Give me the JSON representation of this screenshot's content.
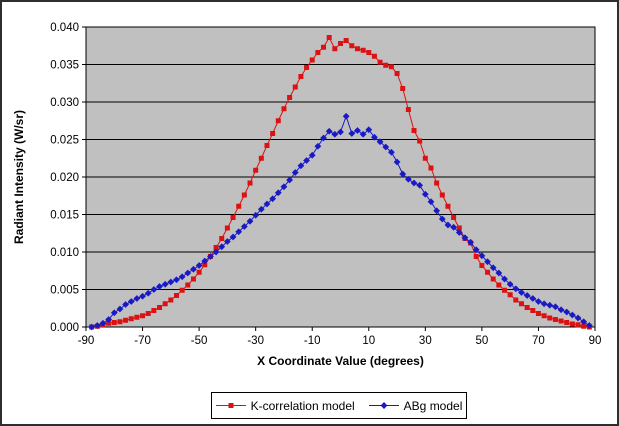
{
  "chart_data": {
    "type": "line",
    "title": "",
    "xlabel": "X Coordinate Value (degrees)",
    "ylabel": "Radiant Intensity (W/sr)",
    "xlim": [
      -90,
      90
    ],
    "ylim": [
      0,
      0.04
    ],
    "x_ticks": [
      "-90",
      "-70",
      "-50",
      "-30",
      "-10",
      "10",
      "30",
      "50",
      "70",
      "90"
    ],
    "y_ticks": [
      "0.000",
      "0.005",
      "0.010",
      "0.015",
      "0.020",
      "0.025",
      "0.030",
      "0.035",
      "0.040"
    ],
    "grid": "horizontal gridlines on, plot area gray",
    "plot_bg_color": "#c0c0c0",
    "gridline_color": "#000000",
    "legend_position": "bottom-center boxed",
    "x_start": -88,
    "x_step": 2,
    "series": [
      {
        "name": "K-correlation model",
        "color": "#dd1111",
        "marker": "square",
        "values": [
          0.0,
          0.0001,
          0.0003,
          0.0005,
          0.0006,
          0.0007,
          0.0009,
          0.0011,
          0.0013,
          0.0015,
          0.0018,
          0.0022,
          0.0026,
          0.0031,
          0.0036,
          0.0042,
          0.0049,
          0.0056,
          0.0064,
          0.0073,
          0.0083,
          0.0094,
          0.0106,
          0.0118,
          0.0132,
          0.0146,
          0.0161,
          0.0176,
          0.0192,
          0.0209,
          0.0225,
          0.0242,
          0.0258,
          0.0275,
          0.0291,
          0.0306,
          0.032,
          0.0334,
          0.0346,
          0.0356,
          0.0366,
          0.0373,
          0.0386,
          0.0371,
          0.0378,
          0.0382,
          0.0375,
          0.0371,
          0.0369,
          0.0366,
          0.0361,
          0.0353,
          0.0349,
          0.0347,
          0.0338,
          0.0318,
          0.029,
          0.0262,
          0.0248,
          0.0225,
          0.0212,
          0.0192,
          0.0176,
          0.0161,
          0.0146,
          0.0132,
          0.0118,
          0.0112,
          0.0094,
          0.0082,
          0.0073,
          0.0064,
          0.0056,
          0.0049,
          0.0043,
          0.0036,
          0.0031,
          0.0026,
          0.0022,
          0.0018,
          0.0015,
          0.0012,
          0.001,
          0.0008,
          0.0006,
          0.0004,
          0.0003,
          0.0001,
          0.0
        ]
      },
      {
        "name": "ABg model",
        "color": "#1a1ac4",
        "marker": "diamond",
        "values": [
          0.0,
          0.0002,
          0.0005,
          0.001,
          0.0019,
          0.0024,
          0.003,
          0.0034,
          0.0038,
          0.0041,
          0.0045,
          0.005,
          0.0054,
          0.0057,
          0.006,
          0.0063,
          0.0067,
          0.0072,
          0.0077,
          0.0082,
          0.0088,
          0.0094,
          0.01,
          0.0107,
          0.0114,
          0.012,
          0.0127,
          0.0134,
          0.0141,
          0.0149,
          0.0157,
          0.0164,
          0.0171,
          0.0179,
          0.0187,
          0.0196,
          0.0206,
          0.0215,
          0.0222,
          0.0229,
          0.0241,
          0.0252,
          0.0261,
          0.0257,
          0.026,
          0.0281,
          0.0258,
          0.0262,
          0.0257,
          0.0263,
          0.0253,
          0.0247,
          0.024,
          0.0233,
          0.022,
          0.0204,
          0.0197,
          0.0192,
          0.0189,
          0.0177,
          0.0167,
          0.0155,
          0.0144,
          0.0136,
          0.0133,
          0.0126,
          0.0119,
          0.0113,
          0.0103,
          0.0095,
          0.0087,
          0.0079,
          0.0072,
          0.0064,
          0.0057,
          0.0051,
          0.0046,
          0.0042,
          0.0038,
          0.0034,
          0.0031,
          0.0029,
          0.0027,
          0.0023,
          0.002,
          0.0016,
          0.0012,
          0.0007,
          0.0002
        ]
      }
    ]
  }
}
